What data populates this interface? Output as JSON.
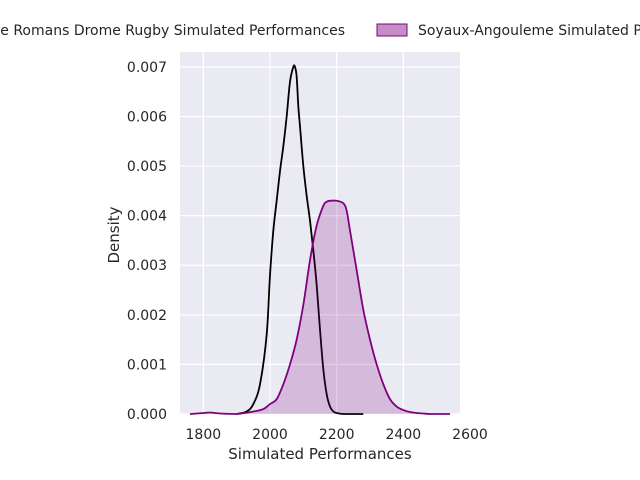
{
  "chart_data": {
    "type": "area",
    "title": "",
    "xlabel": "Simulated Performances",
    "ylabel": "Density",
    "xlim": [
      1730,
      2570
    ],
    "ylim": [
      0,
      0.0073
    ],
    "xticks": [
      1800,
      2000,
      2200,
      2400,
      2600
    ],
    "xtick_labels": [
      "1800",
      "2000",
      "2200",
      "2400",
      "2600"
    ],
    "yticks": [
      0,
      0.001,
      0.002,
      0.003,
      0.004,
      0.005,
      0.006,
      0.007
    ],
    "ytick_labels": [
      "0.000",
      "0.001",
      "0.002",
      "0.003",
      "0.004",
      "0.005",
      "0.006",
      "0.007"
    ],
    "grid": true,
    "legend_position": "top",
    "series": [
      {
        "name": "Valence Romans Drome Rugby Simulated Performances",
        "color": "#000000",
        "fill": false,
        "x": [
          1900,
          1930,
          1950,
          1970,
          1990,
          2000,
          2010,
          2020,
          2030,
          2040,
          2050,
          2060,
          2070,
          2075,
          2080,
          2085,
          2090,
          2100,
          2110,
          2120,
          2130,
          2140,
          2150,
          2160,
          2170,
          2180,
          2190,
          2200,
          2220,
          2240,
          2260,
          2280
        ],
        "y": [
          0,
          5e-05,
          0.0002,
          0.0006,
          0.0016,
          0.0028,
          0.0037,
          0.0043,
          0.0049,
          0.0054,
          0.006,
          0.0067,
          0.007,
          0.007,
          0.0068,
          0.0062,
          0.0058,
          0.005,
          0.0044,
          0.0039,
          0.0033,
          0.0026,
          0.0017,
          0.0009,
          0.0004,
          0.00015,
          5e-05,
          2e-05,
          0,
          0,
          0,
          0
        ]
      },
      {
        "name": "Soyaux-Angouleme Simulated Performances",
        "color": "#800080",
        "fill": true,
        "x": [
          1760,
          1800,
          1820,
          1850,
          1900,
          1950,
          1980,
          2000,
          2020,
          2040,
          2060,
          2080,
          2100,
          2120,
          2140,
          2160,
          2170,
          2180,
          2200,
          2220,
          2230,
          2240,
          2260,
          2280,
          2300,
          2320,
          2340,
          2360,
          2380,
          2400,
          2420,
          2440,
          2460,
          2480,
          2500,
          2540
        ],
        "y": [
          0,
          2e-05,
          3e-05,
          1e-05,
          0,
          5e-05,
          0.0001,
          0.0002,
          0.0003,
          0.0006,
          0.001,
          0.0015,
          0.0022,
          0.0031,
          0.0038,
          0.0042,
          0.00428,
          0.0043,
          0.0043,
          0.00425,
          0.0041,
          0.0037,
          0.0029,
          0.0021,
          0.0015,
          0.001,
          0.0006,
          0.0003,
          0.00015,
          8e-05,
          4e-05,
          2e-05,
          1e-05,
          0,
          0,
          0
        ]
      }
    ]
  }
}
